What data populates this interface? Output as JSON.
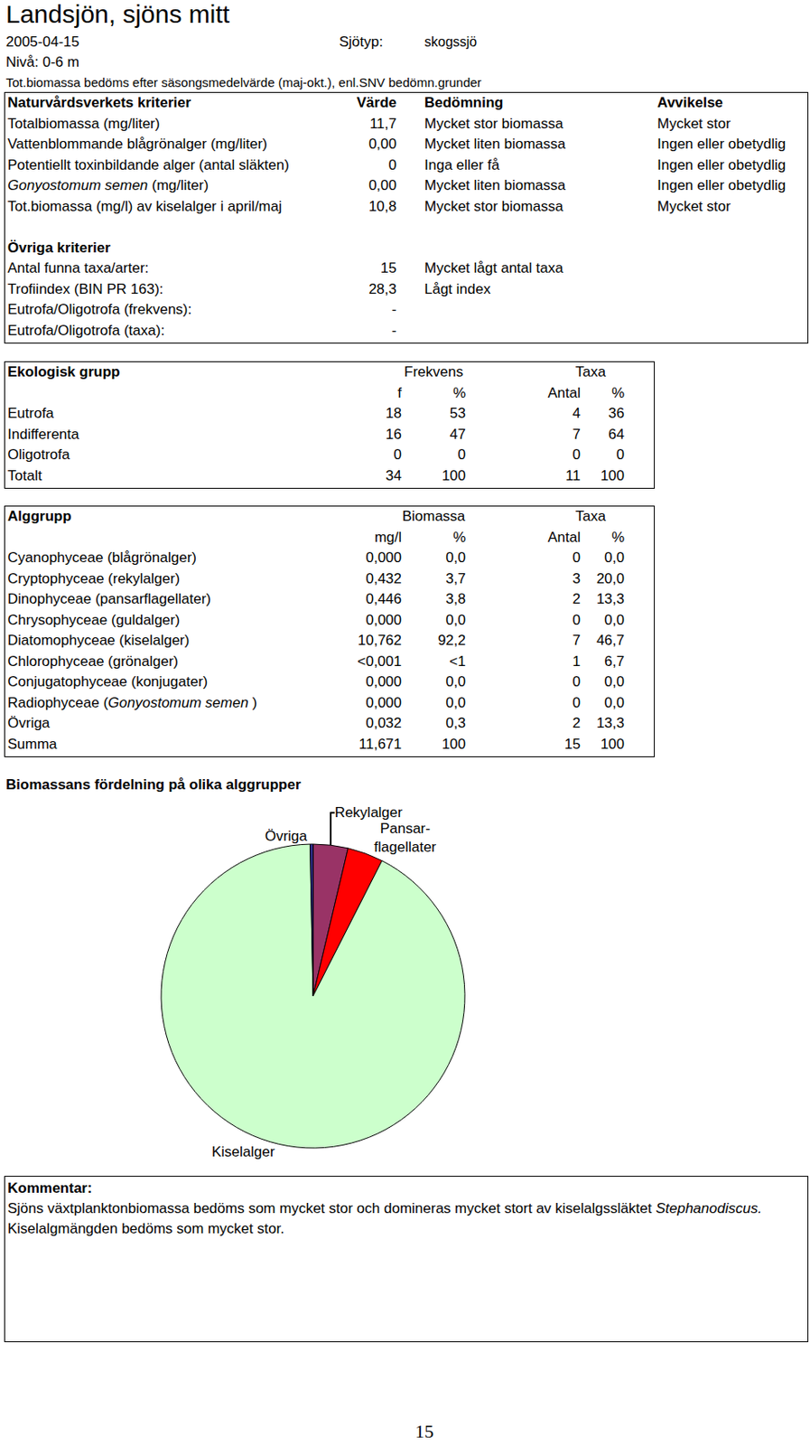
{
  "header": {
    "title": "Landsjön, sjöns mitt",
    "date": "2005-04-15",
    "lake_type_label": "Sjötyp:",
    "lake_type": "skogssjö",
    "level": "Nivå: 0-6 m",
    "note": "Tot.biomassa bedöms efter säsongsmedelvärde (maj-okt.), enl.SNV bedömn.grunder"
  },
  "criteria": {
    "header": [
      "Naturvårdsverkets kriterier",
      "Värde",
      "Bedömning",
      "Avvikelse"
    ],
    "rows": [
      [
        "Totalbiomassa  (mg/liter)",
        "11,7",
        "Mycket stor biomassa",
        "Mycket stor"
      ],
      [
        "Vattenblommande blågrönalger (mg/liter)",
        "0,00",
        "Mycket liten biomassa",
        "Ingen eller obetydlig"
      ],
      [
        "Potentiellt toxinbildande alger (antal släkten)",
        "0",
        "Inga eller få",
        "Ingen eller obetydlig"
      ],
      [
        {
          "text": "Gonyostomum semen  (mg/liter)",
          "italic": "Gonyostomum semen"
        },
        "0,00",
        "Mycket liten biomassa",
        "Ingen eller obetydlig"
      ],
      [
        "Tot.biomassa (mg/l) av kiselalger i april/maj",
        "10,8",
        "Mycket stor biomassa",
        "Mycket stor"
      ]
    ],
    "other_title": "Övriga kriterier",
    "other_rows": [
      [
        "Antal funna taxa/arter:",
        "15",
        "Mycket lågt antal taxa"
      ],
      [
        "Trofiindex (BIN PR 163):",
        "28,3",
        "Lågt index"
      ],
      [
        "Eutrofa/Oligotrofa (frekvens):",
        "-"
      ],
      [
        "Eutrofa/Oligotrofa (taxa):",
        "-"
      ]
    ]
  },
  "ecology": {
    "header": [
      "Ekologisk grupp",
      "Frekvens",
      "Taxa"
    ],
    "subheader": [
      "f",
      "%",
      "Antal",
      "%"
    ],
    "rows": [
      [
        "Eutrofa",
        "18",
        "53",
        "4",
        "36"
      ],
      [
        "Indifferenta",
        "16",
        "47",
        "7",
        "64"
      ],
      [
        "Oligotrofa",
        "0",
        "0",
        "0",
        "0"
      ],
      [
        "Totalt",
        "34",
        "100",
        "11",
        "100"
      ]
    ]
  },
  "algae": {
    "header": [
      "Alggrupp",
      "Biomassa",
      "Taxa"
    ],
    "subheader": [
      "mg/l",
      "%",
      "Antal",
      "%"
    ],
    "rows": [
      [
        "Cyanophyceae (blågrönalger)",
        "0,000",
        "0,0",
        "0",
        "0,0"
      ],
      [
        "Cryptophyceae (rekylalger)",
        "0,432",
        "3,7",
        "3",
        "20,0"
      ],
      [
        "Dinophyceae (pansarflagellater)",
        "0,446",
        "3,8",
        "2",
        "13,3"
      ],
      [
        "Chrysophyceae (guldalger)",
        "0,000",
        "0,0",
        "0",
        "0,0"
      ],
      [
        "Diatomophyceae (kiselalger)",
        "10,762",
        "92,2",
        "7",
        "46,7"
      ],
      [
        "Chlorophyceae (grönalger)",
        "<0,001",
        "<1",
        "1",
        "6,7"
      ],
      [
        "Conjugatophyceae (konjugater)",
        "0,000",
        "0,0",
        "0",
        "0,0"
      ],
      [
        {
          "text": "Radiophyceae (Gonyostomum semen )",
          "italic": "Gonyostomum semen"
        },
        "0,000",
        "0,0",
        "0",
        "0,0"
      ],
      [
        "Övriga",
        "0,032",
        "0,3",
        "2",
        "13,3"
      ],
      [
        "Summa",
        "11,671",
        "100",
        "15",
        "100"
      ]
    ]
  },
  "chart_data": {
    "type": "pie",
    "title": "Biomassans fördelning på olika alggrupper",
    "categories": [
      "Rekylalger",
      "Pansar-\nflagellater",
      "Kiselalger",
      "Övriga"
    ],
    "values": [
      3.7,
      3.8,
      92.2,
      0.3
    ],
    "colors": [
      "#993366",
      "#ff0000",
      "#ccffcc",
      "#333399"
    ]
  },
  "comment": {
    "title": "Kommentar:",
    "text_before": "Sjöns växtplanktonbiomassa bedöms som mycket stor och domineras mycket stort av kiselalgssläktet",
    "italic": "Stephanodiscus.",
    "text_after": "Kiselalgmängden bedöms som mycket stor."
  },
  "page_number": "15"
}
